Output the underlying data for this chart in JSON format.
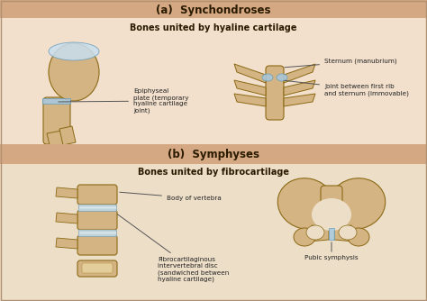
{
  "bg_top": "#f2e0cc",
  "bg_header": "#d4a882",
  "bg_bottom": "#eddec8",
  "text_dark": "#2a1a00",
  "text_label": "#222222",
  "bone_color": "#d4b483",
  "bone_edge": "#8B6914",
  "cartilage_blue": "#a8c8e0",
  "cartilage_light": "#c8dff0",
  "disc_color": "#d8eaf0",
  "title_a": "(a)  Synchondroses",
  "subtitle_a": "Bones united by hyaline cartilage",
  "title_b": "(b)  Symphyses",
  "subtitle_b": "Bones united by fibrocartilage",
  "label_epiphyseal": "Epiphyseal\nplate (temporary\nhyaline cartilage\njoint)",
  "label_sternum": "Sternum (manubrium)",
  "label_joint": "Joint between first rib\nand sternum (immovable)",
  "label_vertebra": "Body of vertebra",
  "label_fibro": "Fibrocartilaginous\nintervertebral disc\n(sandwiched between\nhyaline cartilage)",
  "label_pubic": "Pubic symphysis",
  "fig_width": 4.74,
  "fig_height": 3.34,
  "dpi": 100
}
